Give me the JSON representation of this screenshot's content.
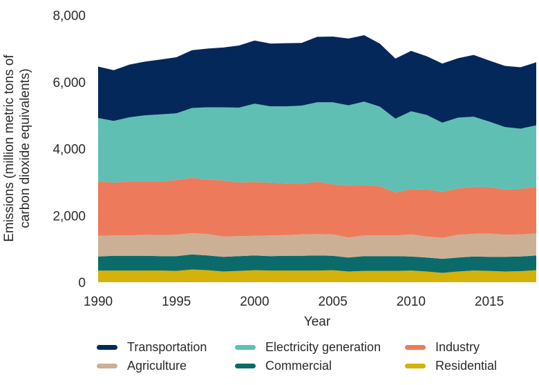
{
  "chart_data": {
    "type": "area",
    "stacked": true,
    "xlabel": "Year",
    "ylabel_lines": [
      "Emissions (million metric tons of",
      "carbon dioxide equivalents)"
    ],
    "ylim": [
      0,
      8000
    ],
    "xlim": [
      1990,
      2018
    ],
    "yticks": [
      "0",
      "2,000",
      "4,000",
      "6,000",
      "8,000"
    ],
    "ytick_values": [
      0,
      2000,
      4000,
      6000,
      8000
    ],
    "xticks": [
      "1990",
      "1995",
      "2000",
      "2005",
      "2010",
      "2015"
    ],
    "xtick_values": [
      1990,
      1995,
      2000,
      2005,
      2010,
      2015
    ],
    "x": [
      1990,
      1991,
      1992,
      1993,
      1994,
      1995,
      1996,
      1997,
      1998,
      1999,
      2000,
      2001,
      2002,
      2003,
      2004,
      2005,
      2006,
      2007,
      2008,
      2009,
      2010,
      2011,
      2012,
      2013,
      2014,
      2015,
      2016,
      2017,
      2018
    ],
    "series": [
      {
        "name": "Residential",
        "color": "#d4b20a",
        "values": [
          350,
          350,
          350,
          350,
          350,
          340,
          380,
          360,
          320,
          340,
          360,
          350,
          350,
          350,
          350,
          360,
          320,
          340,
          340,
          340,
          350,
          320,
          280,
          320,
          350,
          340,
          320,
          330,
          360
        ]
      },
      {
        "name": "Commercial",
        "color": "#0b6b6b",
        "values": [
          420,
          440,
          440,
          440,
          430,
          440,
          450,
          440,
          440,
          440,
          440,
          430,
          440,
          440,
          450,
          430,
          420,
          440,
          440,
          440,
          420,
          420,
          420,
          420,
          420,
          420,
          440,
          440,
          440
        ]
      },
      {
        "name": "Agriculture",
        "color": "#cbb096",
        "values": [
          620,
          610,
          610,
          630,
          630,
          640,
          640,
          640,
          610,
          600,
          590,
          620,
          620,
          640,
          640,
          640,
          600,
          620,
          620,
          620,
          660,
          630,
          630,
          680,
          680,
          700,
          660,
          660,
          660
        ]
      },
      {
        "name": "Industry",
        "color": "#ee7a5c",
        "values": [
          1630,
          1580,
          1620,
          1600,
          1610,
          1640,
          1660,
          1630,
          1680,
          1610,
          1610,
          1580,
          1550,
          1520,
          1570,
          1500,
          1560,
          1510,
          1480,
          1290,
          1360,
          1410,
          1380,
          1390,
          1410,
          1390,
          1360,
          1370,
          1400
        ]
      },
      {
        "name": "Electricity generation",
        "color": "#5fbfb2",
        "values": [
          1900,
          1850,
          1920,
          1980,
          2010,
          2000,
          2090,
          2170,
          2190,
          2240,
          2350,
          2290,
          2310,
          2340,
          2380,
          2460,
          2400,
          2500,
          2380,
          2210,
          2330,
          2230,
          2070,
          2120,
          2100,
          1960,
          1870,
          1800,
          1840
        ]
      },
      {
        "name": "Transportation",
        "color": "#05285a",
        "values": [
          1540,
          1520,
          1580,
          1610,
          1640,
          1680,
          1730,
          1760,
          1790,
          1860,
          1890,
          1880,
          1890,
          1880,
          1960,
          1970,
          2000,
          1990,
          1890,
          1800,
          1810,
          1760,
          1770,
          1780,
          1850,
          1830,
          1830,
          1840,
          1890
        ]
      }
    ],
    "legend_position": "bottom",
    "legend_order": [
      "Transportation",
      "Electricity generation",
      "Industry",
      "Agriculture",
      "Commercial",
      "Residential"
    ]
  }
}
